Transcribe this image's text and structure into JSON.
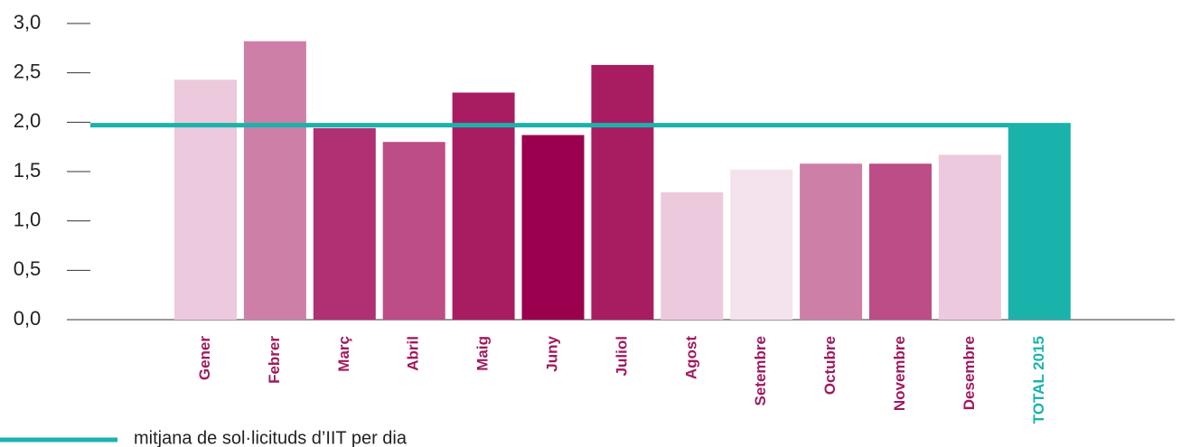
{
  "chart_data": {
    "type": "bar",
    "categories": [
      "Gener",
      "Febrer",
      "Març",
      "Abril",
      "Maig",
      "Juny",
      "Juliol",
      "Agost",
      "Setembre",
      "Octubre",
      "Novembre",
      "Desembre",
      "TOTAL 2015"
    ],
    "values": [
      2.43,
      2.82,
      1.94,
      1.8,
      2.3,
      1.87,
      2.58,
      1.29,
      1.52,
      1.58,
      1.58,
      1.67,
      1.97
    ],
    "colors": [
      "#ecc9dc",
      "#cd7fa8",
      "#b03074",
      "#bc4d86",
      "#a81c62",
      "#9a004e",
      "#a81c62",
      "#ecc9dc",
      "#f4e2ec",
      "#cd7fa8",
      "#bc4d86",
      "#ecc9dc",
      "#1ab3ab"
    ],
    "label_colors": [
      "#a0195e",
      "#a0195e",
      "#a0195e",
      "#a0195e",
      "#a0195e",
      "#a0195e",
      "#a0195e",
      "#a0195e",
      "#a0195e",
      "#a0195e",
      "#a0195e",
      "#a0195e",
      "#1ab3ab"
    ],
    "ylim": [
      0,
      3
    ],
    "yticks": [
      {
        "value": 0,
        "label": "0,0"
      },
      {
        "value": 0.5,
        "label": "0,5"
      },
      {
        "value": 1,
        "label": "1,0"
      },
      {
        "value": 1.5,
        "label": "1,5"
      },
      {
        "value": 2,
        "label": "2,0"
      },
      {
        "value": 2.5,
        "label": "2,5"
      },
      {
        "value": 3,
        "label": "3,0"
      }
    ],
    "average": {
      "name": "mitjana de sol·licituds d’IIT per dia",
      "value": 1.97,
      "color": "#1ab3ab"
    }
  }
}
